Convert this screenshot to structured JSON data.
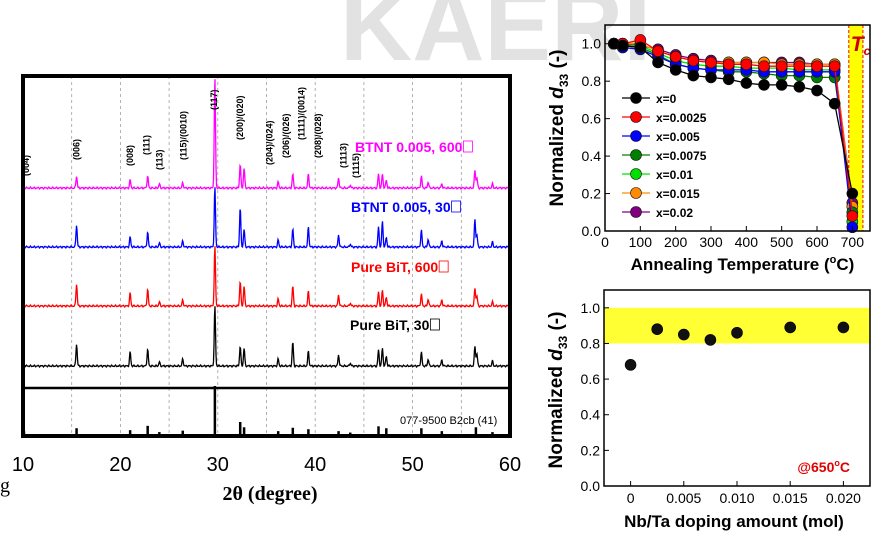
{
  "watermark": "KAERI",
  "chart_data": [
    {
      "type": "line",
      "title": "",
      "xlabel": "2θ (degree)",
      "ylabel": "",
      "xlim": [
        10,
        60
      ],
      "xticks": [
        "10",
        "20",
        "30",
        "40",
        "50",
        "60"
      ],
      "grid": "vertical dashed",
      "stray_label": "g",
      "series": [
        {
          "name": "BTNT 0.005, 600",
          "color": "#ff00ff"
        },
        {
          "name": "BTNT 0.005, 30",
          "color": "#0000ff"
        },
        {
          "name": "Pure BiT, 600",
          "color": "#ff0000"
        },
        {
          "name": "Pure BiT, 30",
          "color": "#000000"
        }
      ],
      "peak_positions": [
        10.1,
        15.5,
        21.0,
        22.8,
        24.0,
        26.4,
        29.7,
        32.3,
        32.7,
        36.2,
        37.7,
        39.3,
        42.4,
        43.6,
        46.5,
        46.9,
        47.3,
        50.9,
        51.6,
        53.0,
        56.4,
        56.6,
        58.2
      ],
      "peak_labels": [
        "(004)",
        "(006)",
        "(008)",
        "(111)",
        "(113)",
        "(115)/(0010)",
        "(117)",
        "(200)/(020)",
        "(204)/(024)",
        "(206)/(026)",
        "(1111)/(0014)",
        "(208)/(028)",
        "(1113)",
        "(1115)"
      ],
      "reference_pattern": {
        "label": "077-9500  B2cb  (41)",
        "sticks": [
          {
            "x": 10.1,
            "i": 6
          },
          {
            "x": 15.5,
            "i": 12
          },
          {
            "x": 21.0,
            "i": 8
          },
          {
            "x": 22.8,
            "i": 17
          },
          {
            "x": 24.0,
            "i": 4
          },
          {
            "x": 26.4,
            "i": 7
          },
          {
            "x": 29.7,
            "i": 100
          },
          {
            "x": 32.3,
            "i": 25
          },
          {
            "x": 32.7,
            "i": 14
          },
          {
            "x": 36.2,
            "i": 6
          },
          {
            "x": 37.7,
            "i": 13
          },
          {
            "x": 39.3,
            "i": 10
          },
          {
            "x": 42.4,
            "i": 6
          },
          {
            "x": 43.6,
            "i": 3
          },
          {
            "x": 46.5,
            "i": 16
          },
          {
            "x": 47.3,
            "i": 12
          },
          {
            "x": 50.9,
            "i": 12
          },
          {
            "x": 53.0,
            "i": 6
          },
          {
            "x": 56.5,
            "i": 14
          },
          {
            "x": 58.2,
            "i": 4
          }
        ]
      }
    },
    {
      "type": "line",
      "title": "",
      "xlabel": "Annealing Temperature (°C)",
      "ylabel": "Normalized d33 (-)",
      "xlim": [
        0,
        750
      ],
      "ylim": [
        0.0,
        1.1
      ],
      "xticks": [
        0,
        100,
        200,
        300,
        400,
        500,
        600,
        700
      ],
      "yticks": [
        0.0,
        0.2,
        0.4,
        0.6,
        0.8,
        1.0
      ],
      "legend": "lower-left",
      "highlight": {
        "label": "Tc",
        "from": 690,
        "to": 730,
        "color": "#ffff00"
      },
      "x": [
        25,
        50,
        100,
        150,
        200,
        250,
        300,
        350,
        400,
        450,
        500,
        550,
        600,
        650,
        700
      ],
      "series": [
        {
          "name": "x=0",
          "color": "#000000",
          "values": [
            1.0,
            0.99,
            0.98,
            0.9,
            0.86,
            0.83,
            0.82,
            0.81,
            0.79,
            0.78,
            0.78,
            0.77,
            0.75,
            0.68,
            0.2
          ]
        },
        {
          "name": "x=0.0025",
          "color": "#ff0000",
          "values": [
            1.0,
            1.0,
            1.02,
            0.96,
            0.93,
            0.91,
            0.9,
            0.89,
            0.89,
            0.88,
            0.88,
            0.88,
            0.88,
            0.88,
            0.08
          ]
        },
        {
          "name": "x=0.005",
          "color": "#0000ff",
          "values": [
            1.0,
            0.98,
            0.97,
            0.93,
            0.89,
            0.87,
            0.86,
            0.86,
            0.86,
            0.85,
            0.85,
            0.85,
            0.85,
            0.85,
            0.02
          ]
        },
        {
          "name": "x=0.0075",
          "color": "#008000",
          "values": [
            1.0,
            0.99,
            0.98,
            0.94,
            0.89,
            0.87,
            0.86,
            0.85,
            0.85,
            0.84,
            0.83,
            0.83,
            0.82,
            0.82,
            0.1
          ]
        },
        {
          "name": "x=0.01",
          "color": "#00e000",
          "values": [
            1.0,
            0.99,
            0.99,
            0.95,
            0.91,
            0.89,
            0.88,
            0.88,
            0.87,
            0.87,
            0.87,
            0.86,
            0.86,
            0.86,
            0.05
          ]
        },
        {
          "name": "x=0.015",
          "color": "#ff8c00",
          "values": [
            1.0,
            1.0,
            1.0,
            0.96,
            0.93,
            0.91,
            0.9,
            0.9,
            0.9,
            0.9,
            0.89,
            0.89,
            0.89,
            0.89,
            0.13
          ]
        },
        {
          "name": "x=0.02",
          "color": "#800080",
          "values": [
            1.0,
            1.0,
            0.99,
            0.97,
            0.94,
            0.92,
            0.91,
            0.9,
            0.9,
            0.9,
            0.9,
            0.9,
            0.89,
            0.89,
            0.15
          ]
        }
      ]
    },
    {
      "type": "scatter",
      "title": "",
      "xlabel": "Nb/Ta doping amount (mol)",
      "ylabel": "Normalized d33 (-)",
      "xlim": [
        -0.0025,
        0.0225
      ],
      "ylim": [
        0.0,
        1.1
      ],
      "xticks": [
        "0",
        "0.005",
        "0.010",
        "0.015",
        "0.020"
      ],
      "yticks": [
        "0.0",
        "0.2",
        "0.4",
        "0.6",
        "0.8",
        "1.0"
      ],
      "band": {
        "from": 0.8,
        "to": 1.0,
        "color": "#ffff33"
      },
      "annotation": "@650°C",
      "x": [
        0,
        0.0025,
        0.005,
        0.0075,
        0.01,
        0.015,
        0.02
      ],
      "y": [
        0.68,
        0.88,
        0.85,
        0.82,
        0.86,
        0.89,
        0.89
      ]
    }
  ]
}
